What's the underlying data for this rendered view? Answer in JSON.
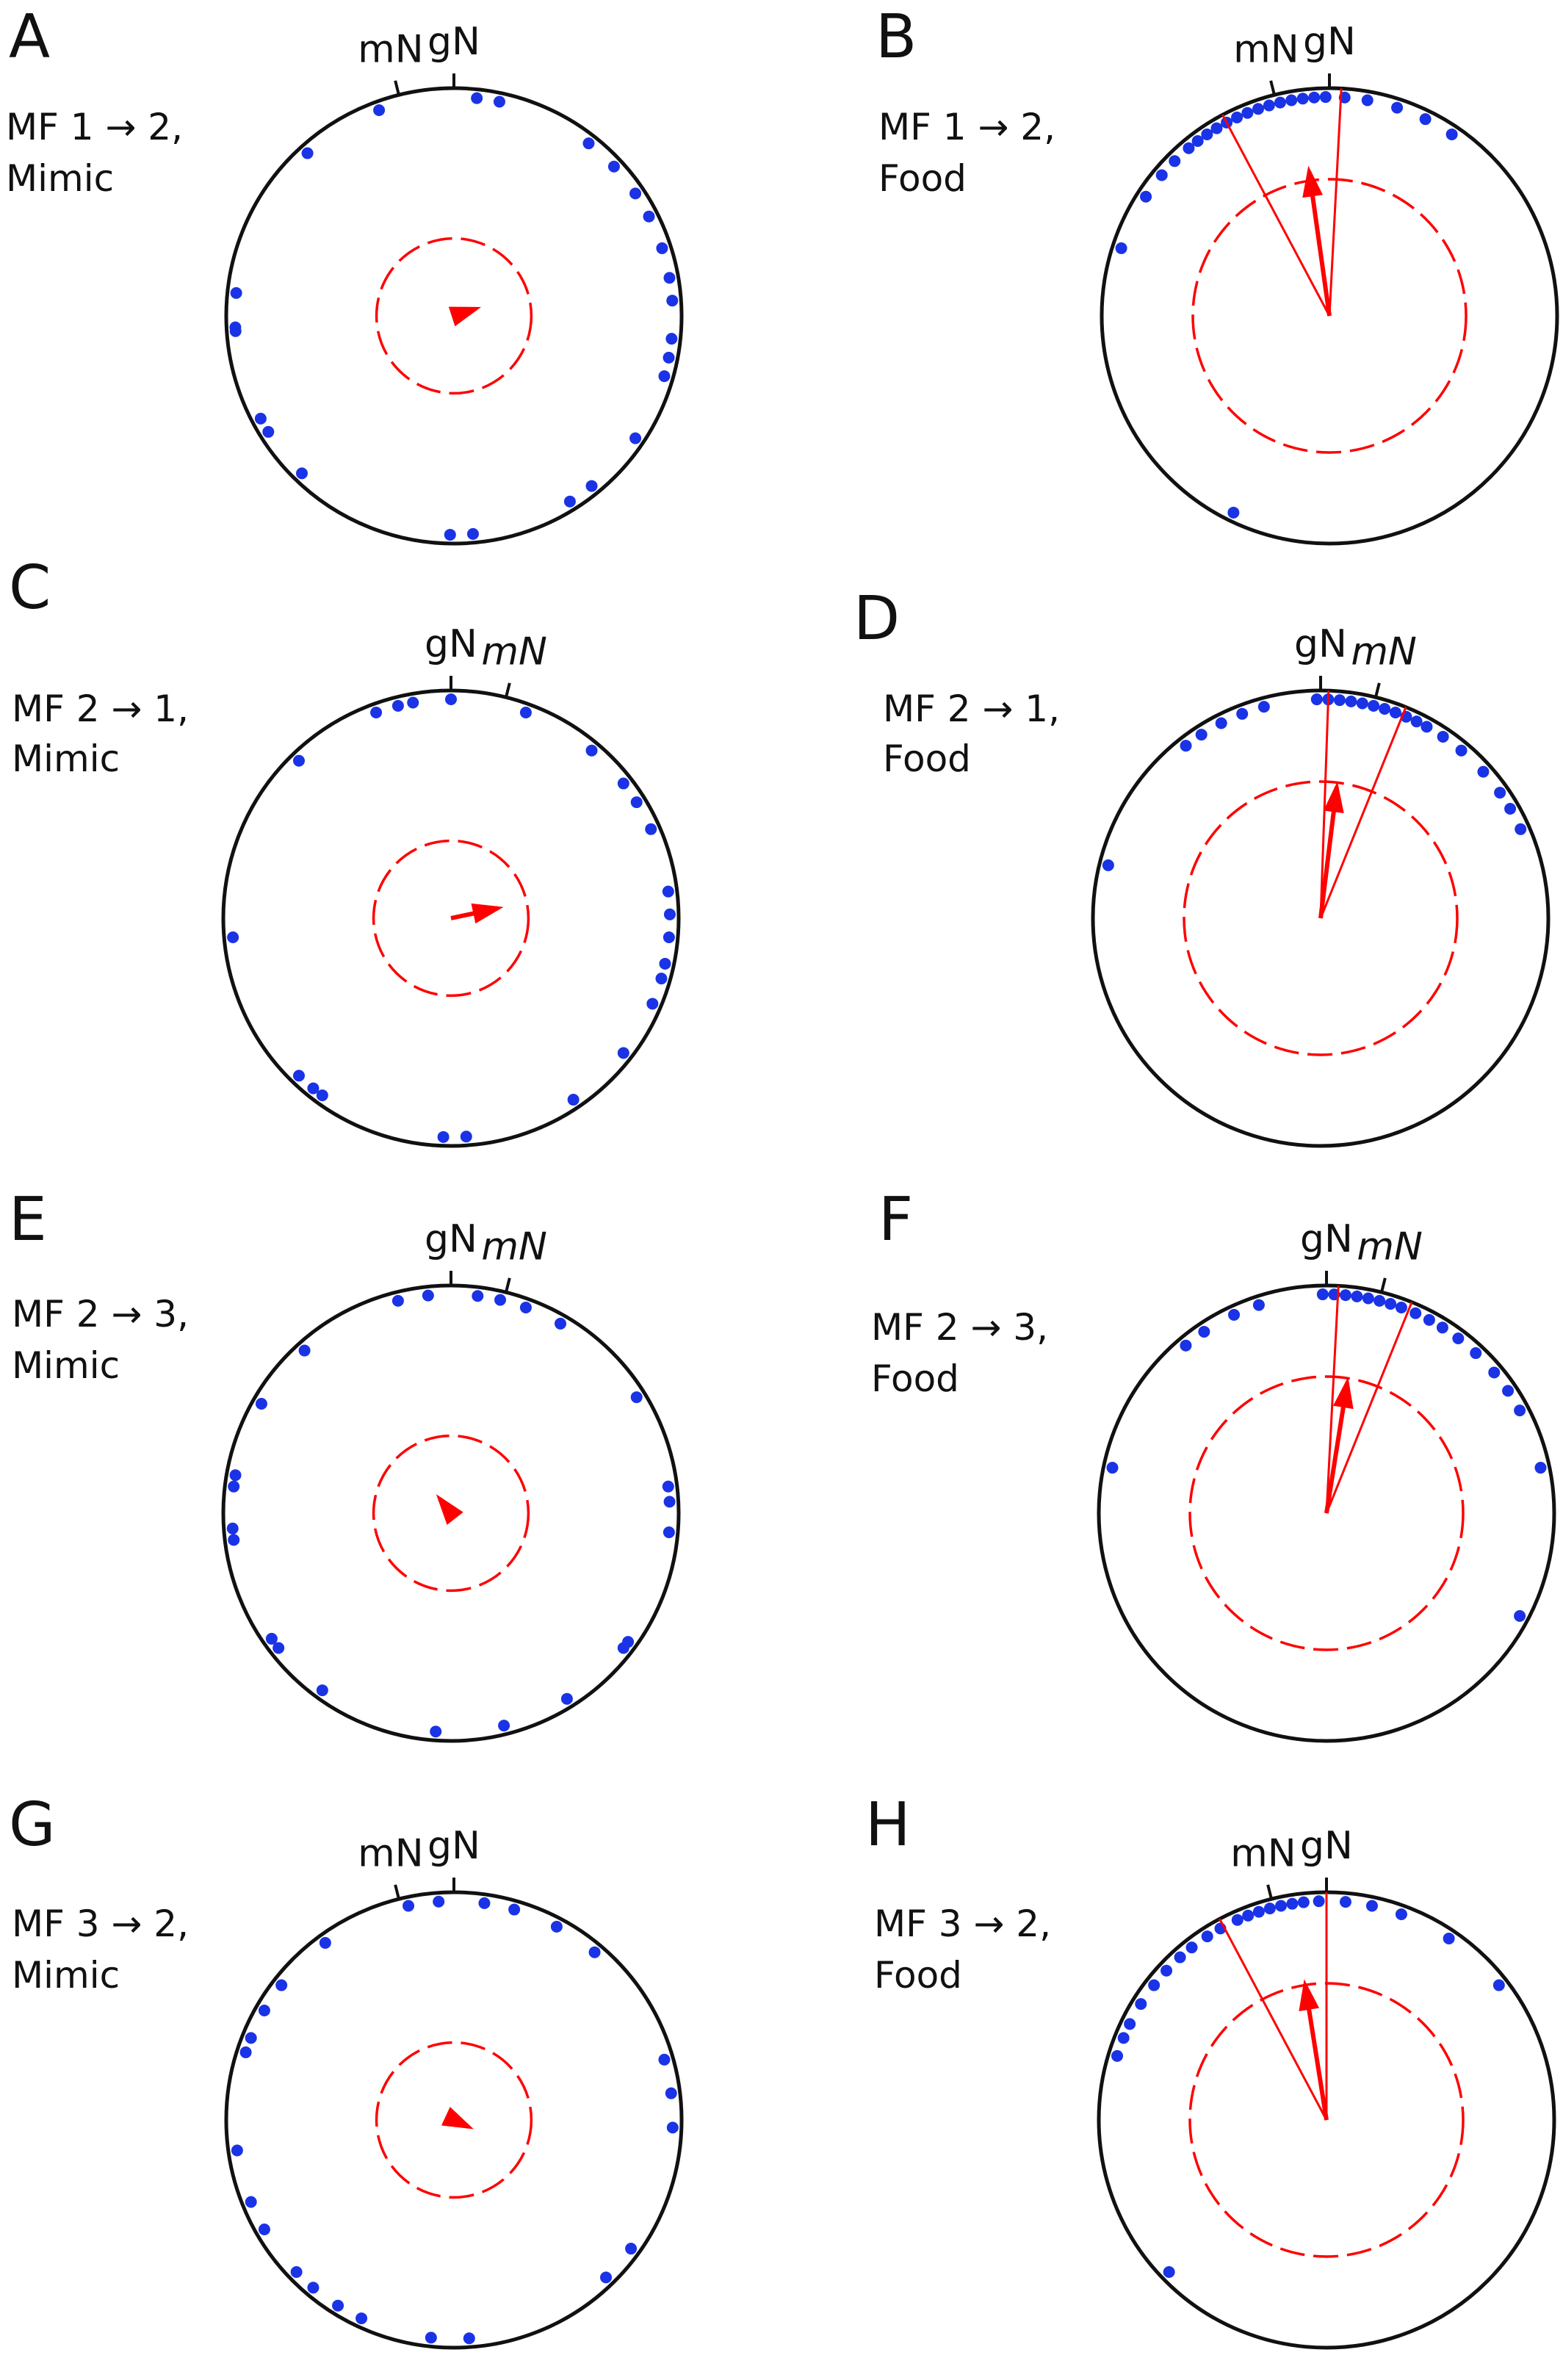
{
  "colors": {
    "points": "#1a33e6",
    "mean": "#ff0000",
    "circle": "#111111"
  },
  "chart_data": [
    {
      "type": "scatter",
      "subtype": "circular",
      "panel": "A",
      "condition": [
        "MF 1 → 2,",
        "Mimic"
      ],
      "labels": {
        "left": "mN",
        "right": "gN"
      },
      "north_angles": {
        "gN": 0,
        "mN": -14
      },
      "angles": [
        6,
        12,
        -20,
        -42,
        38,
        47,
        56,
        63,
        72,
        80,
        86,
        96,
        101,
        106,
        124,
        141,
        148,
        175,
        181,
        224,
        238,
        242,
        266,
        267,
        276
      ],
      "mean_angle": 72,
      "mean_vector_length": 0.1,
      "critical_r": 0.34,
      "confidence_interval": null
    },
    {
      "type": "scatter",
      "subtype": "circular",
      "panel": "B",
      "condition": [
        "MF 1 → 2,",
        "Food"
      ],
      "labels": {
        "left": "mN",
        "right": "gN"
      },
      "north_angles": {
        "gN": 0,
        "mN": -14
      },
      "angles": [
        -1,
        -4,
        -7,
        -10,
        -13,
        -16,
        -19,
        -22,
        -25,
        -28,
        -31,
        -34,
        -37,
        -40,
        -45,
        -50,
        -57,
        -72,
        4,
        10,
        18,
        26,
        34,
        206
      ],
      "mean_angle": -8,
      "mean_vector_length": 0.64,
      "critical_r": 0.6,
      "confidence_interval": [
        -28,
        3
      ]
    },
    {
      "type": "scatter",
      "subtype": "circular",
      "panel": "C",
      "condition": [
        "MF 2 → 1,",
        "Mimic"
      ],
      "labels": {
        "left": "gN",
        "right": "mN"
      },
      "north_angles": {
        "gN": 0,
        "mN": 14
      },
      "angles": [
        0,
        -10,
        -14,
        -20,
        -44,
        20,
        40,
        52,
        58,
        66,
        83,
        89,
        95,
        102,
        106,
        113,
        128,
        146,
        176,
        182,
        216,
        219,
        224,
        265
      ],
      "mean_angle": 78,
      "mean_vector_length": 0.21,
      "critical_r": 0.34,
      "confidence_interval": null
    },
    {
      "type": "scatter",
      "subtype": "circular",
      "panel": "D",
      "condition": [
        "MF 2 → 1,",
        "Food"
      ],
      "labels": {
        "left": "gN",
        "right": "mN"
      },
      "north_angles": {
        "gN": 0,
        "mN": 14
      },
      "angles": [
        -1,
        2,
        5,
        8,
        11,
        14,
        17,
        20,
        23,
        26,
        29,
        34,
        40,
        48,
        55,
        60,
        66,
        -15,
        -21,
        -27,
        -33,
        -38,
        -76
      ],
      "mean_angle": 7,
      "mean_vector_length": 0.58,
      "critical_r": 0.6,
      "confidence_interval": [
        2,
        22
      ]
    },
    {
      "type": "scatter",
      "subtype": "circular",
      "panel": "E",
      "condition": [
        "MF 2 → 3,",
        "Mimic"
      ],
      "labels": {
        "left": "gN",
        "right": "mN"
      },
      "north_angles": {
        "gN": 0,
        "mN": 14
      },
      "angles": [
        -6,
        -14,
        7,
        13,
        20,
        30,
        -42,
        58,
        83,
        87,
        95,
        126,
        128,
        148,
        166,
        184,
        216,
        232,
        235,
        263,
        266,
        277,
        280,
        300
      ],
      "mean_angle": -38,
      "mean_vector_length": 0.08,
      "critical_r": 0.34,
      "confidence_interval": null
    },
    {
      "type": "scatter",
      "subtype": "circular",
      "panel": "F",
      "condition": [
        "MF 2 → 3,",
        "Food"
      ],
      "labels": {
        "left": "gN",
        "right": "mN"
      },
      "north_angles": {
        "gN": 0,
        "mN": 14
      },
      "angles": [
        -1,
        2,
        5,
        8,
        11,
        14,
        17,
        20,
        24,
        28,
        32,
        37,
        43,
        50,
        56,
        62,
        78,
        118,
        -18,
        -25,
        -34,
        -40,
        -78
      ],
      "mean_angle": 9,
      "mean_vector_length": 0.58,
      "critical_r": 0.6,
      "confidence_interval": [
        3,
        22
      ]
    },
    {
      "type": "scatter",
      "subtype": "circular",
      "panel": "G",
      "condition": [
        "MF 3 → 2,",
        "Mimic"
      ],
      "labels": {
        "left": "mN",
        "right": "gN"
      },
      "north_angles": {
        "gN": 0,
        "mN": -14
      },
      "angles": [
        -4,
        -12,
        8,
        16,
        28,
        40,
        -36,
        -52,
        -60,
        -68,
        74,
        83,
        92,
        126,
        136,
        176,
        186,
        205,
        212,
        220,
        226,
        240,
        248,
        262,
        288
      ],
      "mean_angle": 115,
      "mean_vector_length": 0.07,
      "critical_r": 0.34,
      "confidence_interval": null
    },
    {
      "type": "scatter",
      "subtype": "circular",
      "panel": "H",
      "condition": [
        "MF 3 → 2,",
        "Food"
      ],
      "labels": {
        "left": "mN",
        "right": "gN"
      },
      "north_angles": {
        "gN": 0,
        "mN": -14
      },
      "angles": [
        -2,
        -6,
        -9,
        -12,
        -15,
        -18,
        -21,
        -24,
        -29,
        -33,
        -38,
        -42,
        -47,
        -52,
        -58,
        -64,
        -68,
        -73,
        5,
        12,
        20,
        34,
        52,
        226
      ],
      "mean_angle": -9,
      "mean_vector_length": 0.6,
      "critical_r": 0.6,
      "confidence_interval": [
        -28,
        0
      ]
    }
  ]
}
